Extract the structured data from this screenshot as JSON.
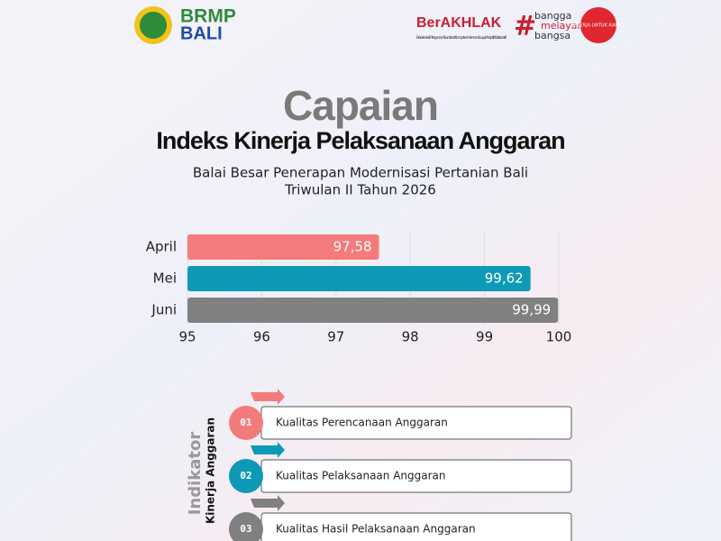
{
  "header": {
    "logo_top": "BRMP",
    "logo_bottom": "BALI",
    "berakhlak": "BerAKHLAK",
    "berakhlak_tagline": "Berorientasi Pelayanan Akuntabel Kompeten Harmonis Loyal Adaptif Kolaboratif",
    "hash": "#",
    "bangga": "bangga",
    "melayani": "melayani",
    "bangsa": "bangsa",
    "badge": "BEKERJA UNTUK RAKYAT"
  },
  "chart_data": {
    "type": "hbar",
    "title": "Capaian",
    "subtitle": "Indeks Kinerja Pelaksanaan Anggaran",
    "caption": [
      "Balai Besar Penerapan Modernisasi Pertanian Bali",
      "Triwulan II Tahun 2026"
    ],
    "categories": [
      "April",
      "Mei",
      "Juni"
    ],
    "values": [
      97.58,
      99.62,
      99.99
    ],
    "value_labels": [
      "97,58",
      "99,62",
      "99,99"
    ],
    "colors": [
      "#f47b7b",
      "#0e9ab6",
      "#808080"
    ],
    "xlim": [
      95,
      100
    ],
    "xticks": [
      95,
      96,
      97,
      98,
      99,
      100
    ],
    "grid": true
  },
  "indicators": {
    "heading": "Indikator",
    "subheading": "Kinerja Anggaran",
    "items": [
      {
        "number": "01",
        "label": "Kualitas Perencanaan Anggaran",
        "color": "#f47b7b"
      },
      {
        "number": "02",
        "label": "Kualitas Pelaksanaan Anggaran",
        "color": "#0e9ab6"
      },
      {
        "number": "03",
        "label": "Kualitas Hasil Pelaksanaan Anggaran",
        "color": "#808080"
      }
    ]
  }
}
